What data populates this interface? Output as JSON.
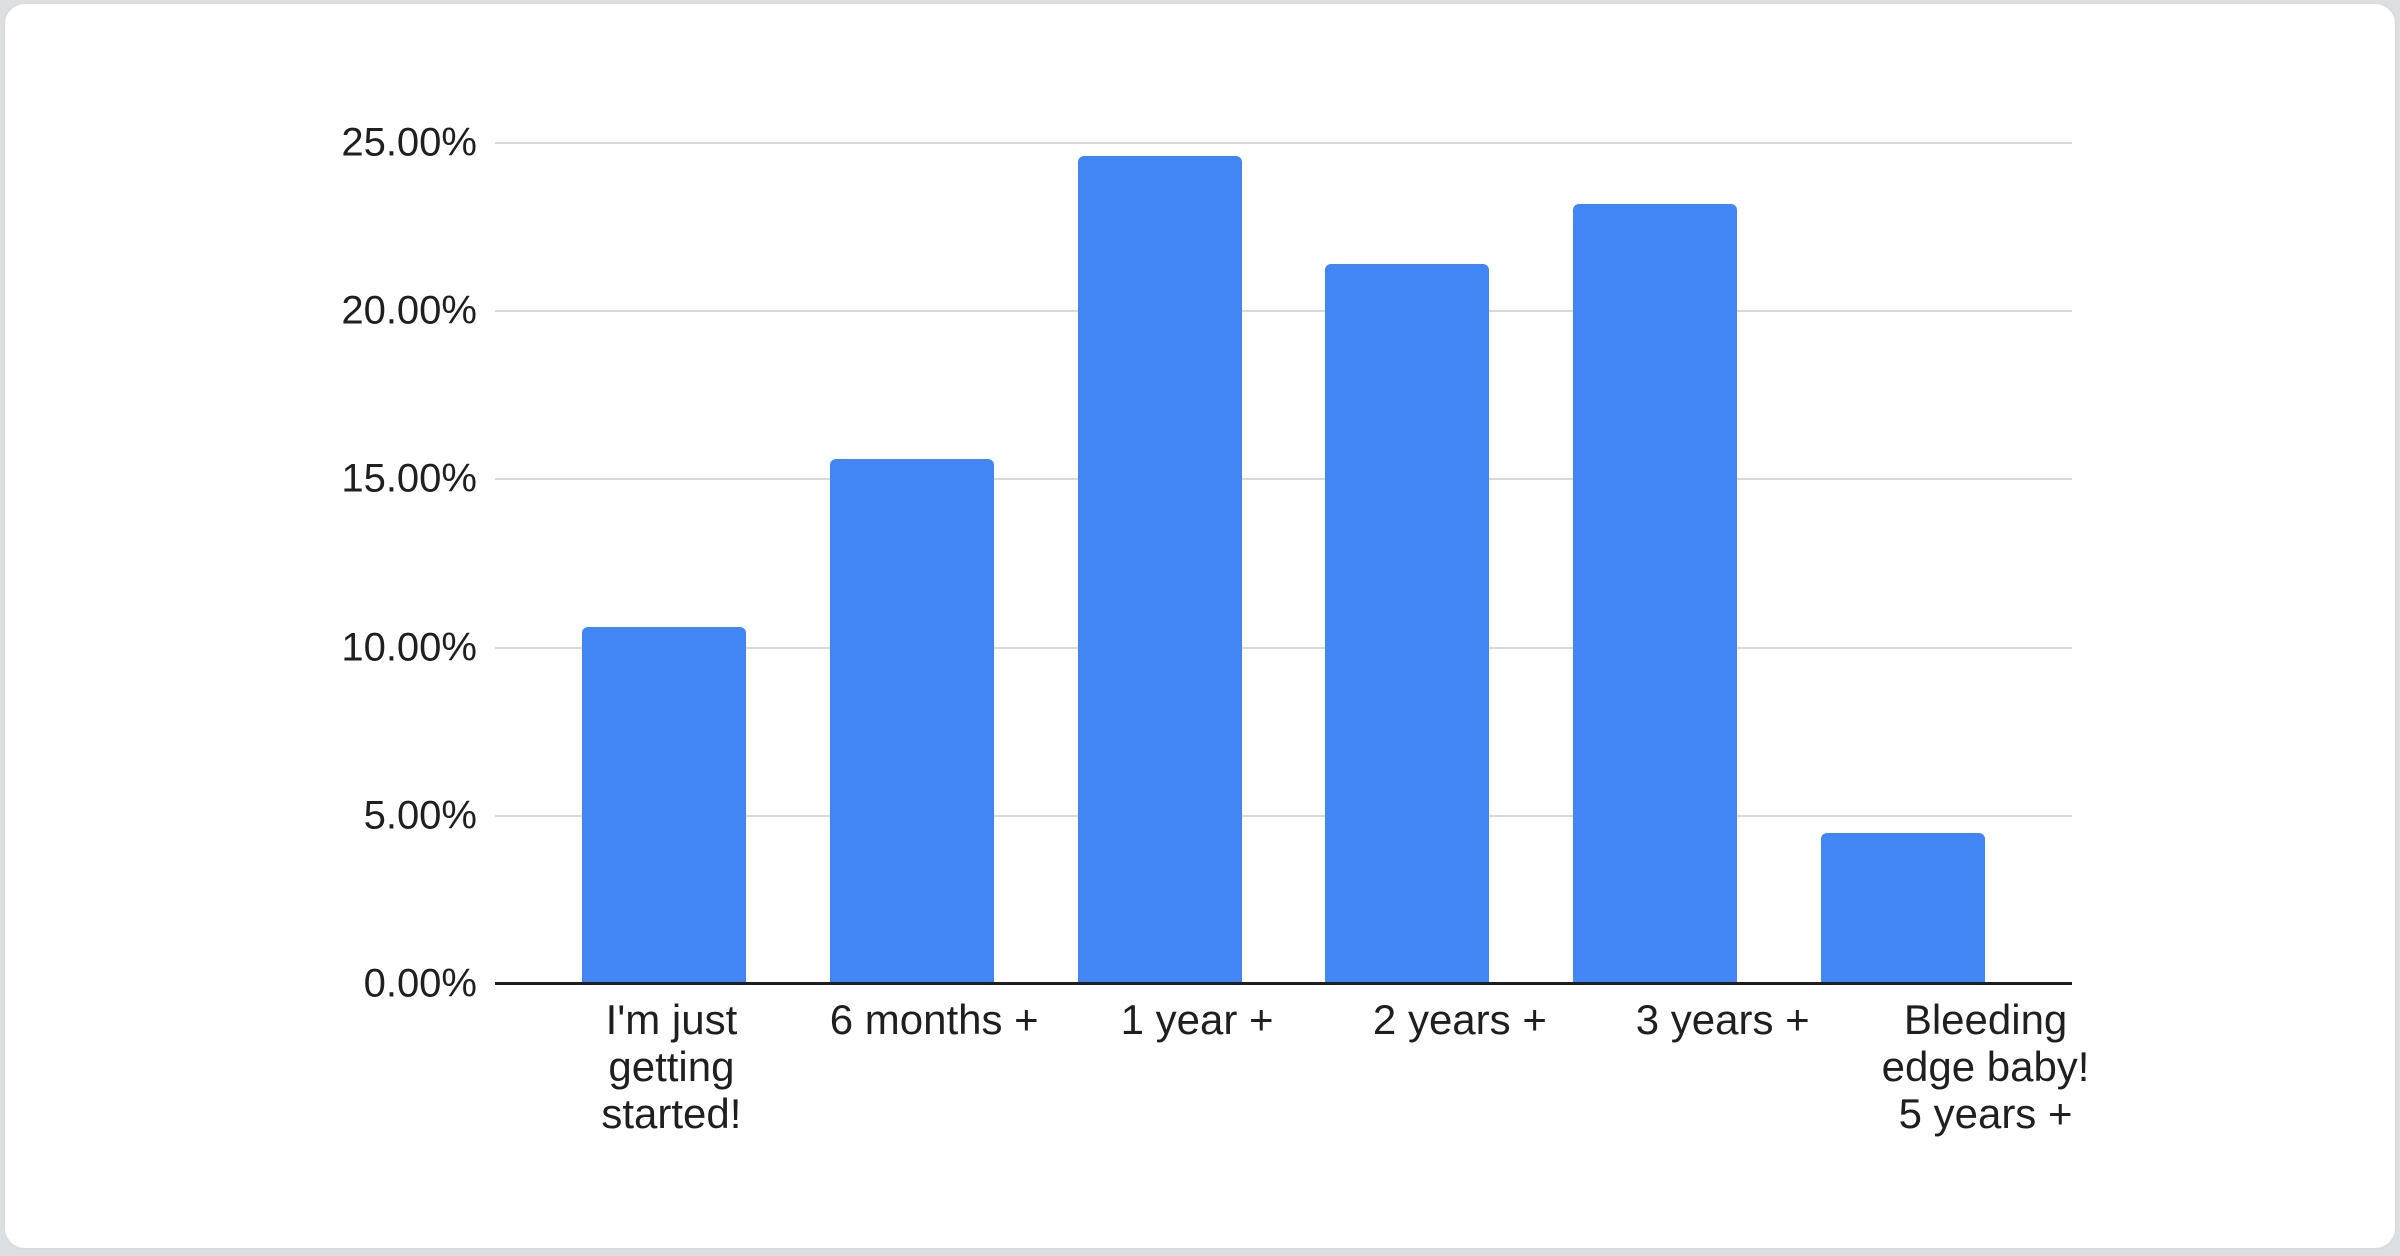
{
  "page": {
    "background_color": "#dde0e3",
    "card_background": "#ffffff",
    "card_border_color": "#d9dcdf"
  },
  "chart_data": {
    "type": "bar",
    "title": "",
    "xlabel": "",
    "ylabel": "",
    "categories": [
      "I'm just\ngetting\nstarted!",
      "6 months +",
      "1 year +",
      "2 years +",
      "3 years +",
      "Bleeding\nedge baby!\n5 years +"
    ],
    "values": [
      10.6,
      15.6,
      24.6,
      21.4,
      23.2,
      4.5
    ],
    "value_unit": "%",
    "bar_color": "#4285f4",
    "ylim": [
      0,
      25
    ],
    "yticks": [
      {
        "value": 0,
        "label": "0.00%"
      },
      {
        "value": 5,
        "label": "5.00%"
      },
      {
        "value": 10,
        "label": "10.00%"
      },
      {
        "value": 15,
        "label": "15.00%"
      },
      {
        "value": 20,
        "label": "20.00%"
      },
      {
        "value": 25,
        "label": "25.00%"
      }
    ],
    "grid": true,
    "gridline_color": "#d9d9d9",
    "axis_line_color": "#1f1f1f",
    "text_color": "#1f1f1f",
    "legend_position": "none"
  }
}
